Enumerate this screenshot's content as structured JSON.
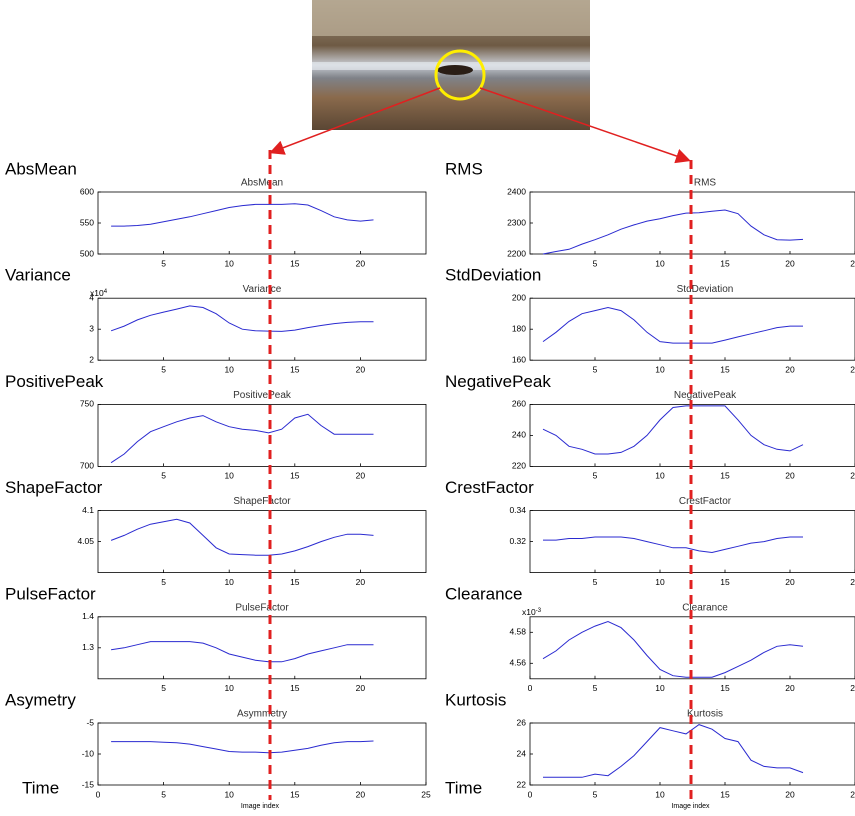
{
  "chart_data": [
    {
      "type": "line",
      "label": "AbsMean",
      "title": "AbsMean",
      "color": "#2a2ad0",
      "x": [
        1,
        2,
        3,
        4,
        5,
        6,
        7,
        8,
        9,
        10,
        11,
        12,
        13,
        14,
        15,
        16,
        17,
        18,
        19,
        20,
        21
      ],
      "values": [
        545,
        545,
        546,
        548,
        552,
        556,
        560,
        565,
        570,
        575,
        578,
        580,
        580,
        580,
        581,
        579,
        570,
        560,
        555,
        553,
        555
      ],
      "xlim": [
        0,
        25
      ],
      "ylim": [
        500,
        600
      ],
      "xticks": [
        5,
        10,
        15,
        20
      ],
      "yticks": [
        500,
        550,
        600
      ]
    },
    {
      "type": "line",
      "label": "RMS",
      "title": "RMS",
      "color": "#2a2ad0",
      "x": [
        1,
        2,
        3,
        4,
        5,
        6,
        7,
        8,
        9,
        10,
        11,
        12,
        13,
        14,
        15,
        16,
        17,
        18,
        19,
        20,
        21
      ],
      "values": [
        2200,
        2208,
        2215,
        2232,
        2246,
        2262,
        2280,
        2294,
        2306,
        2314,
        2324,
        2332,
        2333,
        2338,
        2342,
        2330,
        2290,
        2262,
        2246,
        2245,
        2247
      ],
      "xlim": [
        0,
        25
      ],
      "ylim": [
        2200,
        2400
      ],
      "xticks": [
        5,
        10,
        15,
        20,
        25
      ],
      "yticks": [
        2200,
        2300,
        2400
      ]
    },
    {
      "type": "line",
      "label": "Variance",
      "title": "Variance",
      "color": "#2a2ad0",
      "scale_base": "x10",
      "scale_power": "4",
      "x": [
        1,
        2,
        3,
        4,
        5,
        6,
        7,
        8,
        9,
        10,
        11,
        12,
        13,
        14,
        15,
        16,
        17,
        18,
        19,
        20,
        21
      ],
      "values": [
        2.95,
        3.1,
        3.3,
        3.45,
        3.55,
        3.65,
        3.75,
        3.7,
        3.5,
        3.2,
        3.0,
        2.95,
        2.94,
        2.93,
        2.97,
        3.05,
        3.12,
        3.18,
        3.22,
        3.24,
        3.24
      ],
      "xlim": [
        0,
        25
      ],
      "ylim": [
        2,
        4
      ],
      "xticks": [
        5,
        10,
        15,
        20
      ],
      "yticks": [
        2,
        3,
        4
      ]
    },
    {
      "type": "line",
      "label": "StdDeviation",
      "title": "StdDeviation",
      "color": "#2a2ad0",
      "x": [
        1,
        2,
        3,
        4,
        5,
        6,
        7,
        8,
        9,
        10,
        11,
        12,
        13,
        14,
        15,
        16,
        17,
        18,
        19,
        20,
        21
      ],
      "values": [
        172,
        178,
        185,
        190,
        192,
        194,
        192,
        186,
        178,
        172,
        171,
        171,
        171,
        171,
        173,
        175,
        177,
        179,
        181,
        182,
        182
      ],
      "xlim": [
        0,
        25
      ],
      "ylim": [
        160,
        200
      ],
      "xticks": [
        5,
        10,
        15,
        20,
        25
      ],
      "yticks": [
        160,
        180,
        200
      ]
    },
    {
      "type": "line",
      "label": "PositivePeak",
      "title": "PositivePeak",
      "color": "#2a2ad0",
      "x": [
        1,
        2,
        3,
        4,
        5,
        6,
        7,
        8,
        9,
        10,
        11,
        12,
        13,
        14,
        15,
        16,
        17,
        18,
        19,
        20,
        21
      ],
      "values": [
        703,
        710,
        720,
        728,
        732,
        736,
        739,
        741,
        736,
        732,
        730,
        729,
        727,
        730,
        739,
        742,
        733,
        726,
        726,
        726,
        726
      ],
      "xlim": [
        0,
        25
      ],
      "ylim": [
        700,
        750
      ],
      "xticks": [
        5,
        10,
        15,
        20
      ],
      "yticks": [
        700,
        750
      ]
    },
    {
      "type": "line",
      "label": "NegativePeak",
      "title": "NegativePeak",
      "color": "#2a2ad0",
      "x": [
        1,
        2,
        3,
        4,
        5,
        6,
        7,
        8,
        9,
        10,
        11,
        12,
        13,
        14,
        15,
        16,
        17,
        18,
        19,
        20,
        21
      ],
      "values": [
        244,
        240,
        233,
        231,
        228,
        228,
        229,
        233,
        240,
        250,
        258,
        259,
        259,
        259,
        259,
        250,
        240,
        234,
        231,
        230,
        234
      ],
      "xlim": [
        0,
        25
      ],
      "ylim": [
        220,
        260
      ],
      "xticks": [
        5,
        10,
        15,
        20,
        25
      ],
      "yticks": [
        220,
        240,
        260
      ]
    },
    {
      "type": "line",
      "label": "ShapeFactor",
      "title": "ShapeFactor",
      "color": "#2a2ad0",
      "x": [
        1,
        2,
        3,
        4,
        5,
        6,
        7,
        8,
        9,
        10,
        11,
        12,
        13,
        14,
        15,
        16,
        17,
        18,
        19,
        20,
        21
      ],
      "values": [
        4.052,
        4.06,
        4.07,
        4.078,
        4.082,
        4.086,
        4.08,
        4.06,
        4.04,
        4.03,
        4.029,
        4.028,
        4.028,
        4.03,
        4.035,
        4.042,
        4.05,
        4.057,
        4.062,
        4.062,
        4.06
      ],
      "xlim": [
        0,
        25
      ],
      "ylim": [
        4,
        4.1
      ],
      "xticks": [
        5,
        10,
        15,
        20
      ],
      "yticks": [
        4.05,
        4.1
      ]
    },
    {
      "type": "line",
      "label": "CrestFactor",
      "title": "CrestFactor",
      "color": "#2a2ad0",
      "x": [
        1,
        2,
        3,
        4,
        5,
        6,
        7,
        8,
        9,
        10,
        11,
        12,
        13,
        14,
        15,
        16,
        17,
        18,
        19,
        20,
        21
      ],
      "values": [
        0.321,
        0.321,
        0.322,
        0.322,
        0.323,
        0.323,
        0.323,
        0.322,
        0.32,
        0.318,
        0.316,
        0.316,
        0.314,
        0.313,
        0.315,
        0.317,
        0.319,
        0.32,
        0.322,
        0.323,
        0.323
      ],
      "xlim": [
        0,
        25
      ],
      "ylim": [
        0.3,
        0.34
      ],
      "xticks": [
        5,
        10,
        15,
        20,
        25
      ],
      "yticks": [
        0.32,
        0.34
      ]
    },
    {
      "type": "line",
      "label": "PulseFactor",
      "title": "PulseFactor",
      "color": "#2a2ad0",
      "x": [
        1,
        2,
        3,
        4,
        5,
        6,
        7,
        8,
        9,
        10,
        11,
        12,
        13,
        14,
        15,
        16,
        17,
        18,
        19,
        20,
        21
      ],
      "values": [
        1.294,
        1.3,
        1.31,
        1.32,
        1.32,
        1.32,
        1.32,
        1.315,
        1.3,
        1.28,
        1.27,
        1.26,
        1.255,
        1.255,
        1.265,
        1.28,
        1.29,
        1.3,
        1.31,
        1.31,
        1.31
      ],
      "xlim": [
        0,
        25
      ],
      "ylim": [
        1.2,
        1.4
      ],
      "xticks": [
        5,
        10,
        15,
        20
      ],
      "yticks": [
        1.3,
        1.4
      ]
    },
    {
      "type": "line",
      "label": "Clearance",
      "title": "Clearance",
      "color": "#2a2ad0",
      "scale_base": "x10",
      "scale_power": "-3",
      "x": [
        1,
        2,
        3,
        4,
        5,
        6,
        7,
        8,
        9,
        10,
        11,
        12,
        13,
        14,
        15,
        16,
        17,
        18,
        19,
        20,
        21
      ],
      "values": [
        4.563,
        4.568,
        4.575,
        4.58,
        4.584,
        4.587,
        4.583,
        4.575,
        4.565,
        4.556,
        4.552,
        4.551,
        4.551,
        4.551,
        4.554,
        4.558,
        4.562,
        4.567,
        4.571,
        4.572,
        4.571
      ],
      "xlim": [
        0,
        25
      ],
      "ylim": [
        4.55,
        4.59
      ],
      "xticks": [
        0,
        5,
        10,
        15,
        20,
        25
      ],
      "yticks": [
        4.56,
        4.58
      ]
    },
    {
      "type": "line",
      "label": "Asymetry",
      "title": "Asymmetry",
      "time_label": "Time",
      "xlabel": "Image index",
      "color": "#2a2ad0",
      "x": [
        1,
        2,
        3,
        4,
        5,
        6,
        7,
        8,
        9,
        10,
        11,
        12,
        13,
        14,
        15,
        16,
        17,
        18,
        19,
        20,
        21
      ],
      "values": [
        -8,
        -8,
        -8,
        -8,
        -8.1,
        -8.2,
        -8.4,
        -8.8,
        -9.2,
        -9.6,
        -9.7,
        -9.7,
        -9.8,
        -9.7,
        -9.4,
        -9.1,
        -8.6,
        -8.2,
        -8,
        -8,
        -7.9
      ],
      "xlim": [
        0,
        25
      ],
      "ylim": [
        -15,
        -5
      ],
      "xticks": [
        0,
        5,
        10,
        15,
        20,
        25
      ],
      "yticks": [
        -15,
        -10,
        -5
      ]
    },
    {
      "type": "line",
      "label": "Kurtosis",
      "title": "Kurtosis",
      "time_label": "Time",
      "xlabel": "Image index",
      "color": "#2a2ad0",
      "x": [
        1,
        2,
        3,
        4,
        5,
        6,
        7,
        8,
        9,
        10,
        11,
        12,
        13,
        14,
        15,
        16,
        17,
        18,
        19,
        20,
        21
      ],
      "values": [
        22.5,
        22.5,
        22.5,
        22.5,
        22.7,
        22.6,
        23.2,
        23.9,
        24.8,
        25.7,
        25.5,
        25.3,
        25.9,
        25.6,
        25,
        24.8,
        23.6,
        23.2,
        23.1,
        23.1,
        22.8
      ],
      "xlim": [
        0,
        25
      ],
      "ylim": [
        22,
        26
      ],
      "xticks": [
        0,
        5,
        10,
        15,
        20,
        25
      ],
      "yticks": [
        22,
        24,
        26
      ]
    }
  ]
}
